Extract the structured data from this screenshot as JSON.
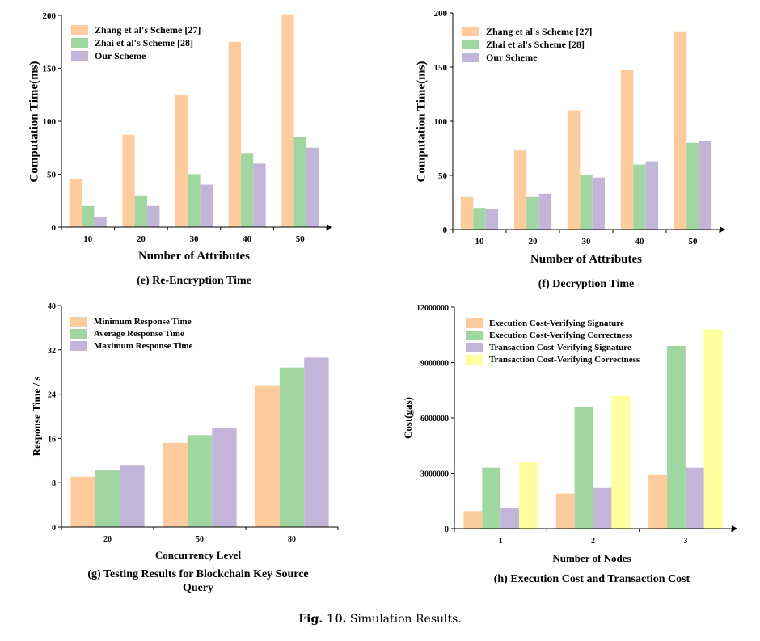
{
  "colors": {
    "peach": "#FECB9C",
    "green": "#A0D7A0",
    "purple": "#C3B5DA",
    "yellow": "#FEFE9E"
  },
  "chart_data": [
    {
      "type": "bar",
      "caption": "(e) Re-Encryption Time",
      "xlabel": "Number of  Attributes",
      "ylabel": "Computation Time(ms)",
      "ylim": [
        0,
        200
      ],
      "yticks": [
        "0",
        "50",
        "100",
        "150",
        "200"
      ],
      "categories": [
        "10",
        "20",
        "30",
        "40",
        "50"
      ],
      "series": [
        {
          "name": "Zhang et al's Scheme [27]",
          "color": "#FECB9C",
          "values": [
            45,
            87,
            125,
            175,
            200
          ]
        },
        {
          "name": "Zhai et al's Scheme [28]",
          "color": "#A0D7A0",
          "values": [
            20,
            30,
            50,
            70,
            85
          ]
        },
        {
          "name": "Our Scheme",
          "color": "#C3B5DA",
          "values": [
            10,
            20,
            40,
            60,
            75
          ]
        }
      ]
    },
    {
      "type": "bar",
      "caption": "(f) Decryption Time",
      "xlabel": "Number of  Attributes",
      "ylabel": "Computation Time(ms)",
      "ylim": [
        0,
        200
      ],
      "yticks": [
        "0",
        "50",
        "100",
        "150",
        "200"
      ],
      "categories": [
        "10",
        "20",
        "30",
        "40",
        "50"
      ],
      "series": [
        {
          "name": "Zhang et al's Scheme [27]",
          "color": "#FECB9C",
          "values": [
            30,
            73,
            110,
            147,
            183
          ]
        },
        {
          "name": "Zhai et al's Scheme [28]",
          "color": "#A0D7A0",
          "values": [
            20,
            30,
            50,
            60,
            80
          ]
        },
        {
          "name": "Our Scheme",
          "color": "#C3B5DA",
          "values": [
            19,
            33,
            48,
            63,
            82
          ]
        }
      ]
    },
    {
      "type": "bar",
      "caption": "(g) Testing Results for Blockchain Key Source Query",
      "xlabel": "Concurrency Level",
      "ylabel": "Response Time / s",
      "ylim": [
        0,
        40
      ],
      "yticks": [
        "0",
        "8",
        "16",
        "24",
        "32",
        "40"
      ],
      "categories": [
        "20",
        "50",
        "80"
      ],
      "series": [
        {
          "name": "Minimum Response Time",
          "color": "#FECB9C",
          "values": [
            9.1,
            15.2,
            25.6
          ]
        },
        {
          "name": "Average Response Time",
          "color": "#A0D7A0",
          "values": [
            10.2,
            16.6,
            28.8
          ]
        },
        {
          "name": "Maximum Response Time",
          "color": "#C3B5DA",
          "values": [
            11.2,
            17.8,
            30.6
          ]
        }
      ]
    },
    {
      "type": "bar",
      "caption": "(h) Execution Cost and Transaction Cost",
      "xlabel": "Number of Nodes",
      "ylabel": "Cost(gas)",
      "ylim": [
        0,
        12000000
      ],
      "yticks": [
        "0",
        "3000000",
        "6000000",
        "9000000",
        "12000000"
      ],
      "categories": [
        "1",
        "2",
        "3"
      ],
      "series": [
        {
          "name": "Execution Cost-Verifying Signature",
          "color": "#FECB9C",
          "values": [
            950000,
            1900000,
            2900000
          ]
        },
        {
          "name": "Execution Cost-Verifying Correctness",
          "color": "#A0D7A0",
          "values": [
            3300000,
            6600000,
            9900000
          ]
        },
        {
          "name": "Transaction Cost-Verifying Signature",
          "color": "#C3B5DA",
          "values": [
            1100000,
            2200000,
            3300000
          ]
        },
        {
          "name": "Transaction Cost-Verifying Correctness",
          "color": "#FEFE9E",
          "values": [
            3600000,
            7200000,
            10800000
          ]
        }
      ]
    }
  ],
  "figure_caption": {
    "label": "Fig. 10.",
    "text": "Simulation Results."
  }
}
